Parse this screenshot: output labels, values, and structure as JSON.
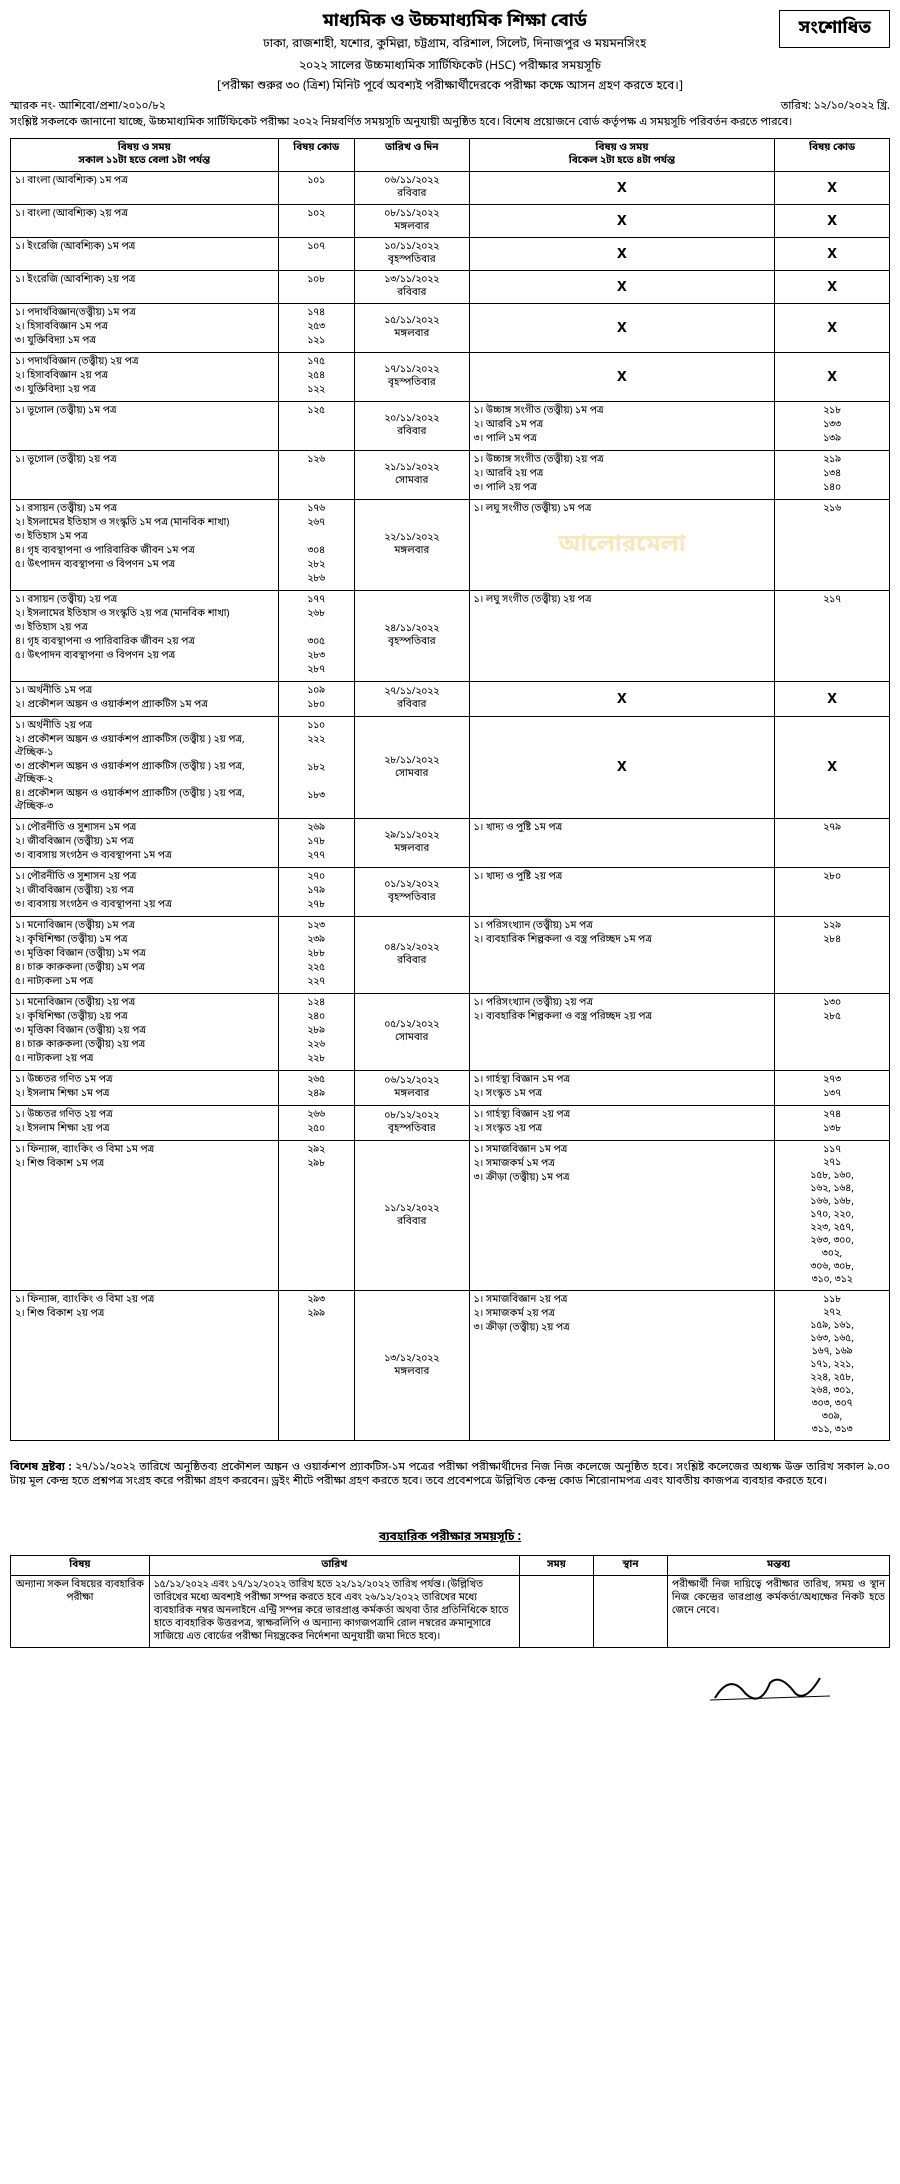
{
  "header": {
    "board_title": "মাধ্যমিক ও উচ্চমাধ্যমিক শিক্ষা বোর্ড",
    "board_sub": "ঢাকা, রাজশাহী, যশোর, কুমিল্লা, চট্টগ্রাম, বরিশাল, সিলেট, দিনাজপুর ও ময়মনসিংহ",
    "exam_line": "২০২২ সালের উচ্চমাধ্যমিক সার্টিফিকেট (HSC) পরীক্ষার সময়সূচি",
    "instruction": "[পরীক্ষা শুরুর ৩০ (ত্রিশ) মিনিট পূর্বে অবশ্যই পরীক্ষার্থীদেরকে পরীক্ষা কক্ষে আসন গ্রহণ করতে হবে।]",
    "revised": "সংশোধিত",
    "ref_no": "স্মারক নং- আশিবো/প্রশা/২০১০/৮২",
    "date": "তারিখ: ১২/১০/২০২২ খ্রি.",
    "intro": "সংশ্লিষ্ট সকলকে জানানো যাচ্ছে, উচ্চমাধ্যমিক সার্টিফিকেট পরীক্ষা ২০২২ নিম্নবর্ণিত সময়সূচি অনুযায়ী অনুষ্ঠিত হবে। বিশেষ প্রয়োজনে বোর্ড কর্তৃপক্ষ এ সময়সূচি পরিবর্তন করতে পারবে।"
  },
  "main_table": {
    "col1_header": "বিষয় ও সময়\nসকাল ১১টা হতে বেলা ১টা পর্যন্ত",
    "col2_header": "বিষয় কোড",
    "col3_header": "তারিখ ও দিন",
    "col4_header": "বিষয় ও সময়\nবিকেল ২টা হতে ৪টা পর্যন্ত",
    "col5_header": "বিষয় কোড",
    "rows": [
      {
        "morning": [
          {
            "n": "১।",
            "s": "বাংলা (আবশ্যিক) ১ম পত্র"
          }
        ],
        "codes": [
          "১০১"
        ],
        "date": "০৬/১১/২০২২\nরবিবার",
        "afternoon_x": true
      },
      {
        "morning": [
          {
            "n": "১।",
            "s": "বাংলা (আবশ্যিক) ২য় পত্র"
          }
        ],
        "codes": [
          "১০২"
        ],
        "date": "০৮/১১/২০২২\nমঙ্গলবার",
        "afternoon_x": true
      },
      {
        "morning": [
          {
            "n": "১।",
            "s": "ইংরেজি (আবশ্যিক) ১ম পত্র"
          }
        ],
        "codes": [
          "১০৭"
        ],
        "date": "১০/১১/২০২২\nবৃহস্পতিবার",
        "afternoon_x": true
      },
      {
        "morning": [
          {
            "n": "১।",
            "s": "ইংরেজি (আবশ্যিক) ২য় পত্র"
          }
        ],
        "codes": [
          "১০৮"
        ],
        "date": "১৩/১১/২০২২\nরবিবার",
        "afternoon_x": true
      },
      {
        "morning": [
          {
            "n": "১।",
            "s": "পদার্থবিজ্ঞান(তত্ত্বীয়) ১ম পত্র"
          },
          {
            "n": "২।",
            "s": "হিসাববিজ্ঞান ১ম পত্র"
          },
          {
            "n": "৩।",
            "s": "যুক্তিবিদ্যা ১ম পত্র"
          }
        ],
        "codes": [
          "১৭৪",
          "২৫৩",
          "১২১"
        ],
        "date": "১৫/১১/২০২২\nমঙ্গলবার",
        "afternoon_x": true
      },
      {
        "morning": [
          {
            "n": "১।",
            "s": "পদার্থবিজ্ঞান (তত্ত্বীয়) ২য় পত্র"
          },
          {
            "n": "২।",
            "s": "হিসাববিজ্ঞান ২য় পত্র"
          },
          {
            "n": "৩।",
            "s": "যুক্তিবিদ্যা ২য় পত্র"
          }
        ],
        "codes": [
          "১৭৫",
          "২৫৪",
          "১২২"
        ],
        "date": "১৭/১১/২০২২\nবৃহস্পতিবার",
        "afternoon_x": true
      },
      {
        "morning": [
          {
            "n": "১।",
            "s": "ভূগোল (তত্ত্বীয়) ১ম পত্র"
          }
        ],
        "codes": [
          "১২৫"
        ],
        "date": "২০/১১/২০২২\nরবিবার",
        "afternoon": [
          {
            "n": "১।",
            "s": "উচ্চাঙ্গ সংগীত (তত্ত্বীয়) ১ম পত্র"
          },
          {
            "n": "২।",
            "s": "আরবি ১ম পত্র"
          },
          {
            "n": "৩।",
            "s": "পালি ১ম পত্র"
          }
        ],
        "acodes": [
          "২১৮",
          "১৩৩",
          "১৩৯"
        ]
      },
      {
        "morning": [
          {
            "n": "১।",
            "s": "ভূগোল (তত্ত্বীয়) ২য় পত্র"
          }
        ],
        "codes": [
          "১২৬"
        ],
        "date": "২১/১১/২০২২\nসোমবার",
        "afternoon": [
          {
            "n": "১।",
            "s": "উচ্চাঙ্গ সংগীত (তত্ত্বীয়) ২য় পত্র"
          },
          {
            "n": "২।",
            "s": "আরবি ২য় পত্র"
          },
          {
            "n": "৩।",
            "s": "পালি ২য় পত্র"
          }
        ],
        "acodes": [
          "২১৯",
          "১৩৪",
          "১৪০"
        ]
      },
      {
        "morning": [
          {
            "n": "১।",
            "s": "রসায়ন (তত্ত্বীয়) ১ম পত্র"
          },
          {
            "n": "২।",
            "s": "ইসলামের ইতিহাস ও সংস্কৃতি ১ম পত্র (মানবিক শাখা)"
          },
          {
            "n": "৩।",
            "s": "ইতিহাস ১ম পত্র"
          },
          {
            "n": "৪।",
            "s": "গৃহ ব্যবস্থাপনা ও পারিবারিক জীবন ১ম পত্র"
          },
          {
            "n": "৫।",
            "s": "উৎপাদন ব্যবস্থাপনা ও বিপণন ১ম পত্র"
          }
        ],
        "codes": [
          "১৭৬",
          "২৬৭",
          "",
          "৩০৪",
          "২৮২",
          "২৮৬"
        ],
        "date": "২২/১১/২০২২\nমঙ্গলবার",
        "afternoon": [
          {
            "n": "১।",
            "s": "লঘু সংগীত (তত্ত্বীয়) ১ম পত্র"
          }
        ],
        "acodes": [
          "২১৬"
        ],
        "watermark": true
      },
      {
        "morning": [
          {
            "n": "১।",
            "s": "রসায়ন (তত্ত্বীয়) ২য় পত্র"
          },
          {
            "n": "২।",
            "s": "ইসলামের ইতিহাস ও সংস্কৃতি ২য় পত্র (মানবিক শাখা)"
          },
          {
            "n": "৩।",
            "s": "ইতিহাস ২য় পত্র"
          },
          {
            "n": "৪।",
            "s": "গৃহ ব্যবস্থাপনা ও পারিবারিক জীবন ২য় পত্র"
          },
          {
            "n": "৫।",
            "s": "উৎপাদন ব্যবস্থাপনা ও বিপণন ২য় পত্র"
          }
        ],
        "codes": [
          "১৭৭",
          "২৬৮",
          "",
          "৩০৫",
          "২৮৩",
          "২৮৭"
        ],
        "date": "২৪/১১/২০২২\nবৃহস্পতিবার",
        "afternoon": [
          {
            "n": "১।",
            "s": "লঘু সংগীত (তত্ত্বীয়) ২য় পত্র"
          }
        ],
        "acodes": [
          "২১৭"
        ]
      },
      {
        "morning": [
          {
            "n": "১।",
            "s": "অর্থনীতি ১ম পত্র"
          },
          {
            "n": "২।",
            "s": "প্রকৌশল অঙ্কন ও ওয়ার্কশপ প্র্যাকটিস ১ম পত্র"
          }
        ],
        "codes": [
          "১০৯",
          "১৮০"
        ],
        "date": "২৭/১১/২০২২\nরবিবার",
        "afternoon_x": true
      },
      {
        "morning": [
          {
            "n": "১।",
            "s": "অর্থনীতি ২য় পত্র"
          },
          {
            "n": "২।",
            "s": "প্রকৌশল অঙ্কন ও ওয়ার্কশপ প্র্যাকটিস (তত্ত্বীয় ) ২য় পত্র, ঐচ্ছিক-১"
          },
          {
            "n": "৩।",
            "s": "প্রকৌশল অঙ্কন ও ওয়ার্কশপ প্র্যাকটিস (তত্ত্বীয় ) ২য় পত্র, ঐচ্ছিক-২"
          },
          {
            "n": "৪।",
            "s": "প্রকৌশল অঙ্কন ও ওয়ার্কশপ প্র্যাকটিস (তত্ত্বীয় ) ২য় পত্র, ঐচ্ছিক-৩"
          }
        ],
        "codes": [
          "১১০",
          "২২২",
          "",
          "১৮২",
          "",
          "১৮৩"
        ],
        "date": "২৮/১১/২০২২\nসোমবার",
        "afternoon_x": true
      },
      {
        "morning": [
          {
            "n": "১।",
            "s": "পৌরনীতি ও সুশাসন ১ম পত্র"
          },
          {
            "n": "২।",
            "s": "জীববিজ্ঞান (তত্ত্বীয়) ১ম পত্র"
          },
          {
            "n": "৩।",
            "s": "ব্যবসায় সংগঠন ও ব্যবস্থাপনা ১ম পত্র"
          }
        ],
        "codes": [
          "২৬৯",
          "১৭৮",
          "২৭৭"
        ],
        "date": "২৯/১১/২০২২\nমঙ্গলবার",
        "afternoon": [
          {
            "n": "১।",
            "s": "খাদ্য ও পুষ্টি ১ম পত্র"
          }
        ],
        "acodes": [
          "২৭৯"
        ]
      },
      {
        "morning": [
          {
            "n": "১।",
            "s": "পৌরনীতি ও সুশাসন ২য় পত্র"
          },
          {
            "n": "২।",
            "s": "জীববিজ্ঞান (তত্ত্বীয়) ২য় পত্র"
          },
          {
            "n": "৩।",
            "s": "ব্যবসায় সংগঠন ও ব্যবস্থাপনা ২য় পত্র"
          }
        ],
        "codes": [
          "২৭০",
          "১৭৯",
          "২৭৮"
        ],
        "date": "০১/১২/২০২২\nবৃহস্পতিবার",
        "afternoon": [
          {
            "n": "১।",
            "s": "খাদ্য ও পুষ্টি ২য় পত্র"
          }
        ],
        "acodes": [
          "২৮০"
        ]
      },
      {
        "morning": [
          {
            "n": "১।",
            "s": "মনোবিজ্ঞান (তত্ত্বীয়) ১ম পত্র"
          },
          {
            "n": "২।",
            "s": "কৃষিশিক্ষা (তত্ত্বীয়) ১ম পত্র"
          },
          {
            "n": "৩।",
            "s": "মৃত্তিকা বিজ্ঞান (তত্ত্বীয়) ১ম পত্র"
          },
          {
            "n": "৪।",
            "s": "চারু কারুকলা (তত্ত্বীয়) ১ম পত্র"
          },
          {
            "n": "৫।",
            "s": "নাট্যকলা ১ম পত্র"
          }
        ],
        "codes": [
          "১২৩",
          "২৩৯",
          "২৮৮",
          "২২৫",
          "২২৭"
        ],
        "date": "০৪/১২/২০২২\nরবিবার",
        "afternoon": [
          {
            "n": "১।",
            "s": "পরিসংখ্যান (তত্ত্বীয়) ১ম পত্র"
          },
          {
            "n": "২।",
            "s": "ব্যবহারিক শিল্পকলা ও বস্ত্র পরিচ্ছদ ১ম পত্র"
          }
        ],
        "acodes": [
          "১২৯",
          "২৮৪"
        ]
      },
      {
        "morning": [
          {
            "n": "১।",
            "s": "মনোবিজ্ঞান (তত্ত্বীয়) ২য় পত্র"
          },
          {
            "n": "২।",
            "s": "কৃষিশিক্ষা (তত্ত্বীয়) ২য় পত্র"
          },
          {
            "n": "৩।",
            "s": "মৃত্তিকা বিজ্ঞান (তত্ত্বীয়) ২য় পত্র"
          },
          {
            "n": "৪।",
            "s": "চারু কারুকলা (তত্ত্বীয়) ২য় পত্র"
          },
          {
            "n": "৫।",
            "s": "নাট্যকলা ২য় পত্র"
          }
        ],
        "codes": [
          "১২৪",
          "২৪০",
          "২৮৯",
          "২২৬",
          "২২৮"
        ],
        "date": "০৫/১২/২০২২\nসোমবার",
        "afternoon": [
          {
            "n": "১।",
            "s": "পরিসংখ্যান (তত্ত্বীয়) ২য় পত্র"
          },
          {
            "n": "২।",
            "s": "ব্যবহারিক শিল্পকলা ও বস্ত্র পরিচ্ছদ ২য় পত্র"
          }
        ],
        "acodes": [
          "১৩০",
          "২৮৫"
        ]
      },
      {
        "morning": [
          {
            "n": "১।",
            "s": "উচ্চতর গণিত ১ম পত্র"
          },
          {
            "n": "২।",
            "s": "ইসলাম শিক্ষা ১ম পত্র"
          }
        ],
        "codes": [
          "২৬৫",
          "২৪৯"
        ],
        "date": "০৬/১২/২০২২\nমঙ্গলবার",
        "afternoon": [
          {
            "n": "১।",
            "s": "গার্হস্থ্য বিজ্ঞান ১ম পত্র"
          },
          {
            "n": "২।",
            "s": "সংস্কৃত ১ম পত্র"
          }
        ],
        "acodes": [
          "২৭৩",
          "১৩৭"
        ]
      },
      {
        "morning": [
          {
            "n": "১।",
            "s": "উচ্চতর গণিত ২য় পত্র"
          },
          {
            "n": "২।",
            "s": "ইসলাম শিক্ষা ২য় পত্র"
          }
        ],
        "codes": [
          "২৬৬",
          "২৫০"
        ],
        "date": "০৮/১২/২০২২\nবৃহস্পতিবার",
        "afternoon": [
          {
            "n": "১।",
            "s": "গার্হস্থ্য বিজ্ঞান ২য় পত্র"
          },
          {
            "n": "২।",
            "s": "সংস্কৃত ২য় পত্র"
          }
        ],
        "acodes": [
          "২৭৪",
          "১৩৮"
        ]
      },
      {
        "morning": [
          {
            "n": "১।",
            "s": "ফিন্যান্স, ব্যাংকিং ও বিমা ১ম পত্র"
          },
          {
            "n": "২।",
            "s": "শিশু বিকাশ ১ম পত্র"
          }
        ],
        "codes": [
          "২৯২",
          "২৯৮"
        ],
        "date": "১১/১২/২০২২\nরবিবার",
        "afternoon": [
          {
            "n": "১।",
            "s": "সমাজবিজ্ঞান ১ম পত্র"
          },
          {
            "n": "২।",
            "s": "সমাজকর্ম ১ম পত্র"
          },
          {
            "n": "৩।",
            "s": "ক্রীড়া (তত্ত্বীয়) ১ম পত্র"
          }
        ],
        "acodes_long": [
          "১১৭",
          "২৭১",
          "১৫৮, ১৬০,",
          "১৬২, ১৬৪,",
          "১৬৬, ১৬৮,",
          "১৭০, ২২০,",
          "২২৩, ২৫৭,",
          "২৬৩, ৩০০,",
          "৩০২,",
          "৩০৬, ৩০৮,",
          "৩১০, ৩১২"
        ]
      },
      {
        "morning": [
          {
            "n": "১।",
            "s": "ফিন্যান্স, ব্যাংকিং ও বিমা ২য় পত্র"
          },
          {
            "n": "২।",
            "s": "শিশু বিকাশ ২য় পত্র"
          }
        ],
        "codes": [
          "২৯৩",
          "২৯৯"
        ],
        "date": "১৩/১২/২০২২\nমঙ্গলবার",
        "afternoon": [
          {
            "n": "১।",
            "s": "সমাজবিজ্ঞান ২য় পত্র"
          },
          {
            "n": "২।",
            "s": "সমাজকর্ম ২য় পত্র"
          },
          {
            "n": "৩।",
            "s": "ক্রীড়া (তত্ত্বীয়) ২য় পত্র"
          }
        ],
        "acodes_long": [
          "১১৮",
          "২৭২",
          "১৫৯, ১৬১,",
          "১৬৩, ১৬৫,",
          "১৬৭, ১৬৯",
          "১৭১, ২২১,",
          "২২৪, ২৫৮,",
          "২৬৪, ৩০১,",
          "৩০৩, ৩০৭",
          "৩০৯,",
          "৩১১, ৩১৩"
        ]
      }
    ]
  },
  "note": "বিশেষ দ্রষ্টব্য : ২৭/১১/২০২২ তারিখে অনুষ্ঠিতব্য প্রকৌশল অঙ্কন ও ওয়ার্কশপ প্র্যাকটিস-১ম পত্রের পরীক্ষা পরীক্ষার্থীদের নিজ নিজ কলেজে অনুষ্ঠিত হবে। সংশ্লিষ্ট কলেজের অধ্যক্ষ উক্ত তারিখ সকাল ৯.০০ টায় মূল কেন্দ্র হতে প্রশ্নপত্র সংগ্রহ করে পরীক্ষা গ্রহণ করবেন। ড্রইং শীটে পরীক্ষা গ্রহণ করতে হবে। তবে প্রবেশপত্রে উল্লিখিত কেন্দ্র কোড শিরোনামপত্র এবং যাবতীয় কাজপত্র ব্যবহার করতে হবে।",
  "practical": {
    "title": "ব্যবহারিক পরীক্ষার সময়সূচি :",
    "headers": [
      "বিষয়",
      "তারিখ",
      "সময়",
      "স্থান",
      "মন্তব্য"
    ],
    "row": {
      "subject": "অন্যান্য সকল বিষয়ের ব্যবহারিক পরীক্ষা",
      "date_text": "১৫/১২/২০২২ এবং ১৭/১২/২০২২ তারিখ হতে ২২/১২/২০২২ তারিখ পর্যন্ত। (উল্লিখিত তারিখের মধ্যে অবশ্যই পরীক্ষা সম্পন্ন করতে হবে এবং ২৬/১২/২০২২ তারিখের মধ্যে ব্যবহারিক নম্বর অনলাইনে এন্ট্রি সম্পন্ন করে ভারপ্রাপ্ত কর্মকর্তা অথবা তাঁর প্রতিনিধিকে হাতে হাতে ব্যবহারিক উত্তরপত্র, স্বাক্ষরলিপি ও অন্যান্য কাগজপত্রাদি রোল নম্বরের ক্রমানুসারে সাজিয়ে এত বোর্ডের পরীক্ষা নিয়ন্ত্রকের নির্দেশনা অনুযায়ী জমা দিতে হবে)।",
      "remark": "পরীক্ষার্থী নিজ দায়িত্বে পরীক্ষার তারিখ, সময় ও স্থান নিজ কেন্দ্রের ভারপ্রাপ্ত কর্মকর্তা/অধ্যক্ষের নিকট হতে জেনে নেবে।"
    }
  }
}
